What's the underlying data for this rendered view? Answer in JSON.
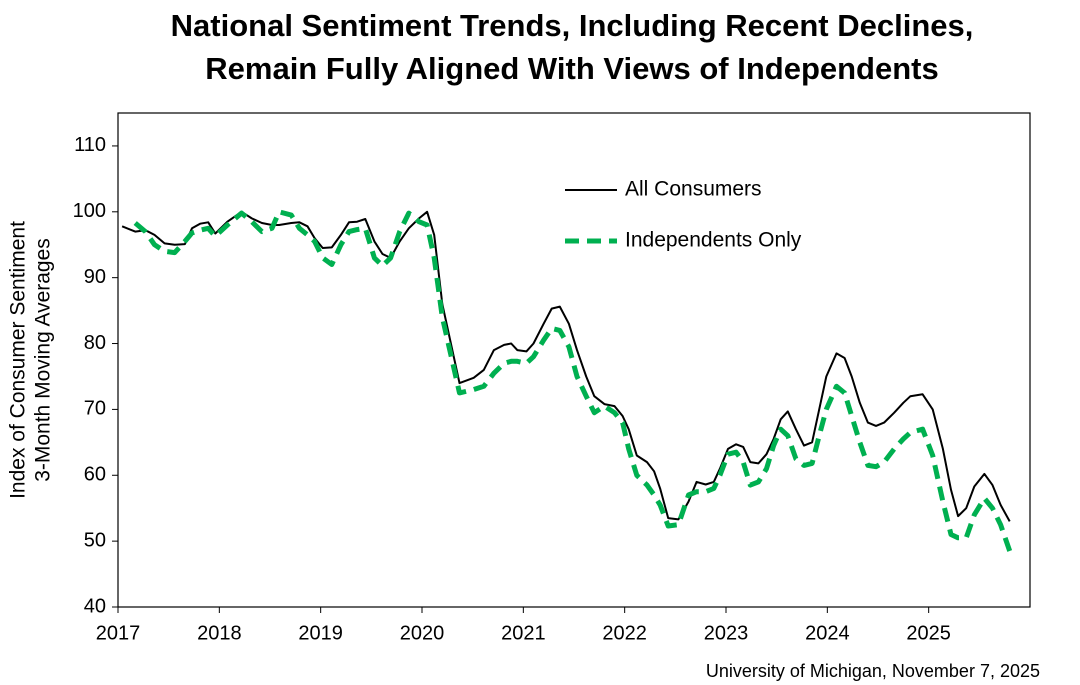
{
  "chart_data": {
    "type": "line",
    "title": [
      "National Sentiment Trends, Including Recent Declines,",
      "Remain Fully Aligned With Views of Independents"
    ],
    "y_label": [
      "Index of Consumer Sentiment",
      "3-Month Moving Averages"
    ],
    "source": "University of Michigan, November 7, 2025",
    "x": [
      2017.04,
      2017.17,
      2017.27,
      2017.36,
      2017.46,
      2017.56,
      2017.66,
      2017.73,
      2017.81,
      2017.89,
      2017.96,
      2018.08,
      2018.22,
      2018.32,
      2018.42,
      2018.52,
      2018.59,
      2018.71,
      2018.79,
      2018.87,
      2018.94,
      2019.02,
      2019.11,
      2019.2,
      2019.28,
      2019.36,
      2019.44,
      2019.53,
      2019.61,
      2019.69,
      2019.78,
      2019.87,
      2019.97,
      2020.05,
      2020.12,
      2020.2,
      2020.37,
      2020.51,
      2020.61,
      2020.71,
      2020.81,
      2020.88,
      2020.94,
      2021.03,
      2021.1,
      2021.2,
      2021.28,
      2021.36,
      2021.45,
      2021.53,
      2021.62,
      2021.7,
      2021.8,
      2021.9,
      2021.98,
      2022.04,
      2022.12,
      2022.22,
      2022.29,
      2022.35,
      2022.43,
      2022.53,
      2022.63,
      2022.71,
      2022.8,
      2022.88,
      2022.94,
      2023.02,
      2023.1,
      2023.17,
      2023.24,
      2023.32,
      2023.4,
      2023.47,
      2023.54,
      2023.61,
      2023.69,
      2023.77,
      2023.85,
      2023.92,
      2023.99,
      2024.09,
      2024.17,
      2024.24,
      2024.32,
      2024.4,
      2024.48,
      2024.56,
      2024.66,
      2024.75,
      2024.82,
      2024.94,
      2025.04,
      2025.14,
      2025.22,
      2025.29,
      2025.37,
      2025.45,
      2025.55,
      2025.63,
      2025.71,
      2025.8
    ],
    "series": [
      {
        "name": "All Consumers",
        "color": "#000000",
        "dashed": false,
        "values": [
          97.8,
          97,
          97.2,
          96.5,
          95.2,
          95,
          95.1,
          97.5,
          98.2,
          98.4,
          96.7,
          98.5,
          100,
          99,
          98.3,
          98,
          98,
          98.3,
          98.4,
          97.8,
          96,
          94.5,
          94.6,
          96.5,
          98.4,
          98.5,
          98.9,
          95.5,
          93.6,
          93,
          95.5,
          97.5,
          99,
          100,
          96.5,
          86,
          74,
          74.8,
          76,
          79,
          79.8,
          80,
          79,
          78.8,
          80,
          83,
          85.3,
          85.6,
          83,
          79,
          75,
          72,
          70.8,
          70.5,
          69,
          67,
          63,
          62,
          60.6,
          58,
          53.5,
          53.3,
          56,
          59,
          58.6,
          59,
          61,
          64,
          64.7,
          64.3,
          62,
          61.8,
          63.2,
          65.5,
          68.5,
          69.7,
          67,
          64.5,
          65,
          70,
          75,
          78.5,
          77.8,
          75,
          71,
          68,
          67.5,
          68,
          69.5,
          71,
          72,
          72.3,
          70,
          64,
          57.8,
          53.8,
          55,
          58.3,
          60.2,
          58.5,
          55.5,
          53
        ]
      },
      {
        "name": "Independents Only",
        "color": "#00b050",
        "dashed": true,
        "values": [
          null,
          98.3,
          97,
          95,
          94,
          93.8,
          95.5,
          96.8,
          97.2,
          97.5,
          96.3,
          98,
          99.8,
          98.5,
          97,
          97.5,
          100,
          99.5,
          97.5,
          96.5,
          95.5,
          93,
          92,
          95,
          97,
          97.3,
          97.5,
          93,
          91.8,
          93,
          97,
          99.8,
          98.5,
          98,
          93,
          84,
          72.5,
          73,
          73.5,
          75.5,
          77,
          77.3,
          77.3,
          77,
          78,
          80.5,
          82.3,
          82,
          79.5,
          75,
          72,
          69.5,
          70.5,
          69.5,
          68,
          64,
          60,
          58.5,
          57,
          55.5,
          52.3,
          52.5,
          57,
          57.5,
          57.5,
          58,
          60,
          63.2,
          63.5,
          62,
          58.5,
          59,
          61,
          64.5,
          67,
          66,
          62.5,
          61.5,
          61.8,
          66,
          70,
          73.5,
          72.5,
          69,
          65,
          61.5,
          61.3,
          62,
          64,
          65.5,
          66.5,
          67,
          63,
          56,
          51,
          50.5,
          50.5,
          54,
          56.5,
          55,
          52.5,
          48.5
        ]
      }
    ],
    "xlim": [
      2017,
      2026
    ],
    "xticks": [
      2017,
      2018,
      2019,
      2020,
      2021,
      2022,
      2023,
      2024,
      2025
    ],
    "ylim": [
      40,
      115
    ],
    "yticks": [
      40,
      50,
      60,
      70,
      80,
      90,
      100,
      110
    ],
    "grid": false,
    "legend": "upper-right"
  }
}
